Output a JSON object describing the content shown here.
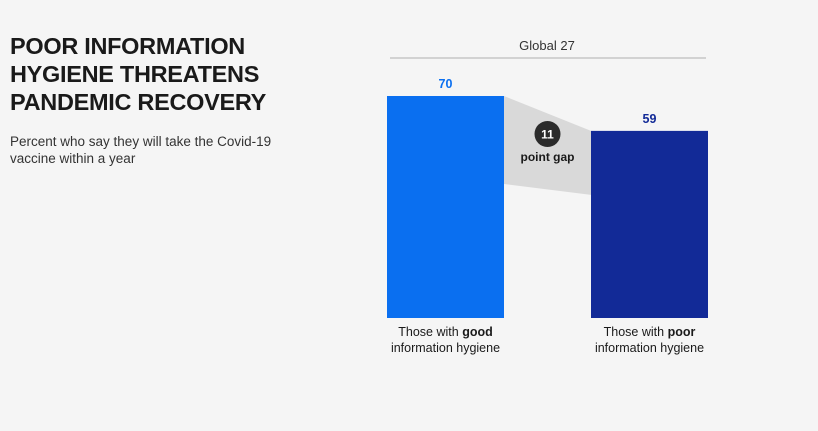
{
  "headline_lines": [
    "POOR INFORMATION",
    "HYGIENE THREATENS",
    "PANDEMIC RECOVERY"
  ],
  "subtitle": "Percent who say they will take the Covid-19 vaccine within a year",
  "chart_data": {
    "type": "bar",
    "group_label": "Global 27",
    "categories": [
      {
        "pre": "Those with ",
        "bold": "good",
        "line2": "information hygiene"
      },
      {
        "pre": "Those with ",
        "bold": "poor",
        "line2": "information hygiene"
      }
    ],
    "values": [
      70,
      59
    ],
    "bar_colors": [
      "#0a6ff0",
      "#122a97"
    ],
    "value_label_colors": [
      "#0a6ff0",
      "#122a97"
    ],
    "gap": {
      "value": "11",
      "label": "point gap",
      "color": "#d9d9d9",
      "badge_color": "#2b2b2b"
    },
    "ylim": [
      0,
      70
    ]
  }
}
